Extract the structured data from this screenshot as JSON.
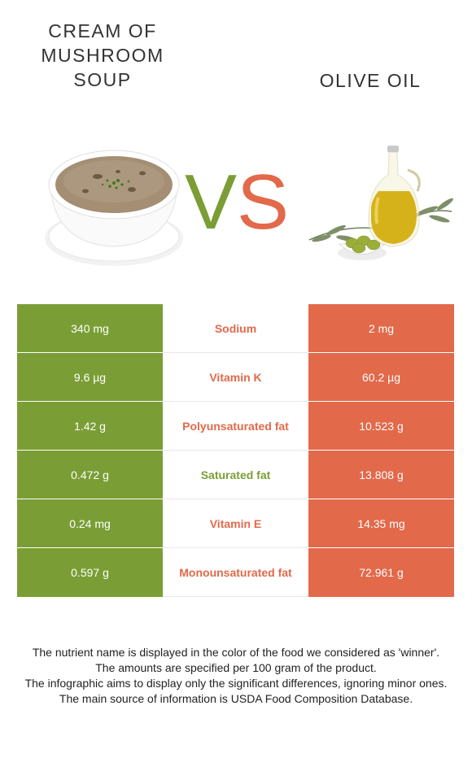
{
  "left_food": {
    "name": "CREAM OF MUSHROOM SOUP",
    "color": "#7a9e35"
  },
  "right_food": {
    "name": "OLIVE OIL",
    "color": "#e2694a"
  },
  "vs": {
    "v": "V",
    "s": "S"
  },
  "rows": [
    {
      "left": "340 mg",
      "nutrient": "Sodium",
      "right": "2 mg",
      "winner": "right"
    },
    {
      "left": "9.6 µg",
      "nutrient": "Vitamin K",
      "right": "60.2 µg",
      "winner": "right"
    },
    {
      "left": "1.42 g",
      "nutrient": "Polyunsaturated fat",
      "right": "10.523 g",
      "winner": "right"
    },
    {
      "left": "0.472 g",
      "nutrient": "Saturated fat",
      "right": "13.808 g",
      "winner": "left"
    },
    {
      "left": "0.24 mg",
      "nutrient": "Vitamin E",
      "right": "14.35 mg",
      "winner": "right"
    },
    {
      "left": "0.597 g",
      "nutrient": "Monounsaturated fat",
      "right": "72.961 g",
      "winner": "right"
    }
  ],
  "footer": [
    "The nutrient name is displayed in the color of the food we considered as 'winner'.",
    "The amounts are specified per 100 gram of the product.",
    "The infographic aims to display only the significant differences, ignoring minor ones.",
    "The main source of information is USDA Food Composition Database."
  ]
}
